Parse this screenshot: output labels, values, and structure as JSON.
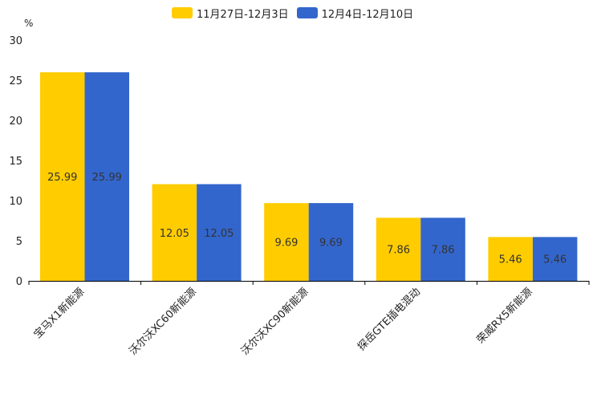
{
  "chart_data": {
    "type": "bar",
    "unit_label": "%",
    "categories": [
      "宝马X1新能源",
      "沃尔沃XC60新能源",
      "沃尔沃XC90新能源",
      "探岳GTE插电混动",
      "荣威RX5新能源"
    ],
    "series": [
      {
        "name": "11月27日-12月3日",
        "color": "#FFCC00",
        "values": [
          25.99,
          12.05,
          9.69,
          7.86,
          5.46
        ]
      },
      {
        "name": "12月4日-12月10日",
        "color": "#3366CC",
        "values": [
          25.99,
          12.05,
          9.69,
          7.86,
          5.46
        ]
      }
    ],
    "ylim": [
      0,
      30
    ],
    "yticks": [
      0,
      5,
      10,
      15,
      20,
      25,
      30
    ],
    "grid": false,
    "legend_position": "top-center"
  }
}
